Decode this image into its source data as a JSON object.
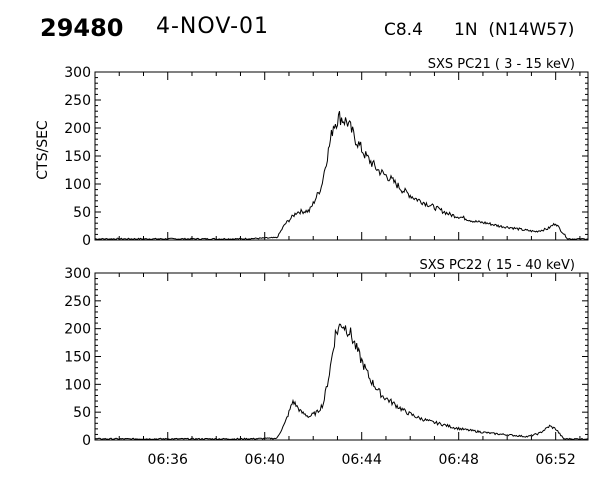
{
  "header": {
    "event_number": "29480",
    "date": "4-NOV-01",
    "goes_class": "C8.4",
    "h_alpha": "1N",
    "location": "(N14W57)"
  },
  "chart_data": [
    {
      "type": "line",
      "title": "SXS PC21  (  3 - 15 keV)",
      "ylabel": "CTS/SEC",
      "xlabel": "",
      "ylim": [
        0,
        300
      ],
      "yticks": [
        0,
        50,
        100,
        150,
        200,
        250,
        300
      ],
      "xlim": [
        "06:33:00",
        "06:53:20"
      ],
      "xticks": [
        "06:36",
        "06:40",
        "06:44",
        "06:48",
        "06:52"
      ],
      "x": [
        "06:33:00",
        "06:35:00",
        "06:37:00",
        "06:39:00",
        "06:40:30",
        "06:40:50",
        "06:41:20",
        "06:41:50",
        "06:42:00",
        "06:42:20",
        "06:42:35",
        "06:42:50",
        "06:43:05",
        "06:43:25",
        "06:43:45",
        "06:44:10",
        "06:44:40",
        "06:45:10",
        "06:45:40",
        "06:46:10",
        "06:46:40",
        "06:47:10",
        "06:47:40",
        "06:48:10",
        "06:48:40",
        "06:49:10",
        "06:49:40",
        "06:50:10",
        "06:50:40",
        "06:51:10",
        "06:51:40",
        "06:52:00",
        "06:52:10",
        "06:52:30",
        "06:53:20"
      ],
      "series": [
        {
          "values": [
            2,
            2,
            2,
            2,
            4,
            28,
            50,
            52,
            65,
            95,
            150,
            205,
            220,
            210,
            180,
            150,
            125,
            110,
            90,
            75,
            65,
            55,
            45,
            40,
            33,
            30,
            25,
            22,
            18,
            15,
            20,
            30,
            20,
            2,
            2
          ]
        }
      ]
    },
    {
      "type": "line",
      "title": "SXS PC22  ( 15 - 40 keV)",
      "ylabel": "",
      "xlabel": "",
      "ylim": [
        0,
        300
      ],
      "yticks": [
        0,
        50,
        100,
        150,
        200,
        250,
        300
      ],
      "xlim": [
        "06:33:00",
        "06:53:20"
      ],
      "xticks": [
        "06:36",
        "06:40",
        "06:44",
        "06:48",
        "06:52"
      ],
      "x": [
        "06:33:00",
        "06:35:00",
        "06:37:00",
        "06:39:00",
        "06:40:30",
        "06:40:50",
        "06:41:10",
        "06:41:30",
        "06:41:50",
        "06:42:10",
        "06:42:25",
        "06:42:40",
        "06:42:55",
        "06:43:10",
        "06:43:30",
        "06:43:55",
        "06:44:20",
        "06:44:50",
        "06:45:20",
        "06:45:50",
        "06:46:20",
        "06:46:50",
        "06:47:20",
        "06:47:50",
        "06:48:20",
        "06:48:50",
        "06:49:20",
        "06:49:50",
        "06:50:20",
        "06:50:50",
        "06:51:20",
        "06:51:45",
        "06:52:00",
        "06:52:20",
        "06:53:20"
      ],
      "series": [
        {
          "values": [
            2,
            2,
            2,
            2,
            3,
            30,
            70,
            50,
            42,
            50,
            65,
            120,
            190,
            210,
            195,
            150,
            110,
            80,
            65,
            50,
            40,
            33,
            28,
            22,
            18,
            15,
            12,
            10,
            8,
            6,
            12,
            25,
            20,
            2,
            2
          ]
        }
      ]
    }
  ]
}
